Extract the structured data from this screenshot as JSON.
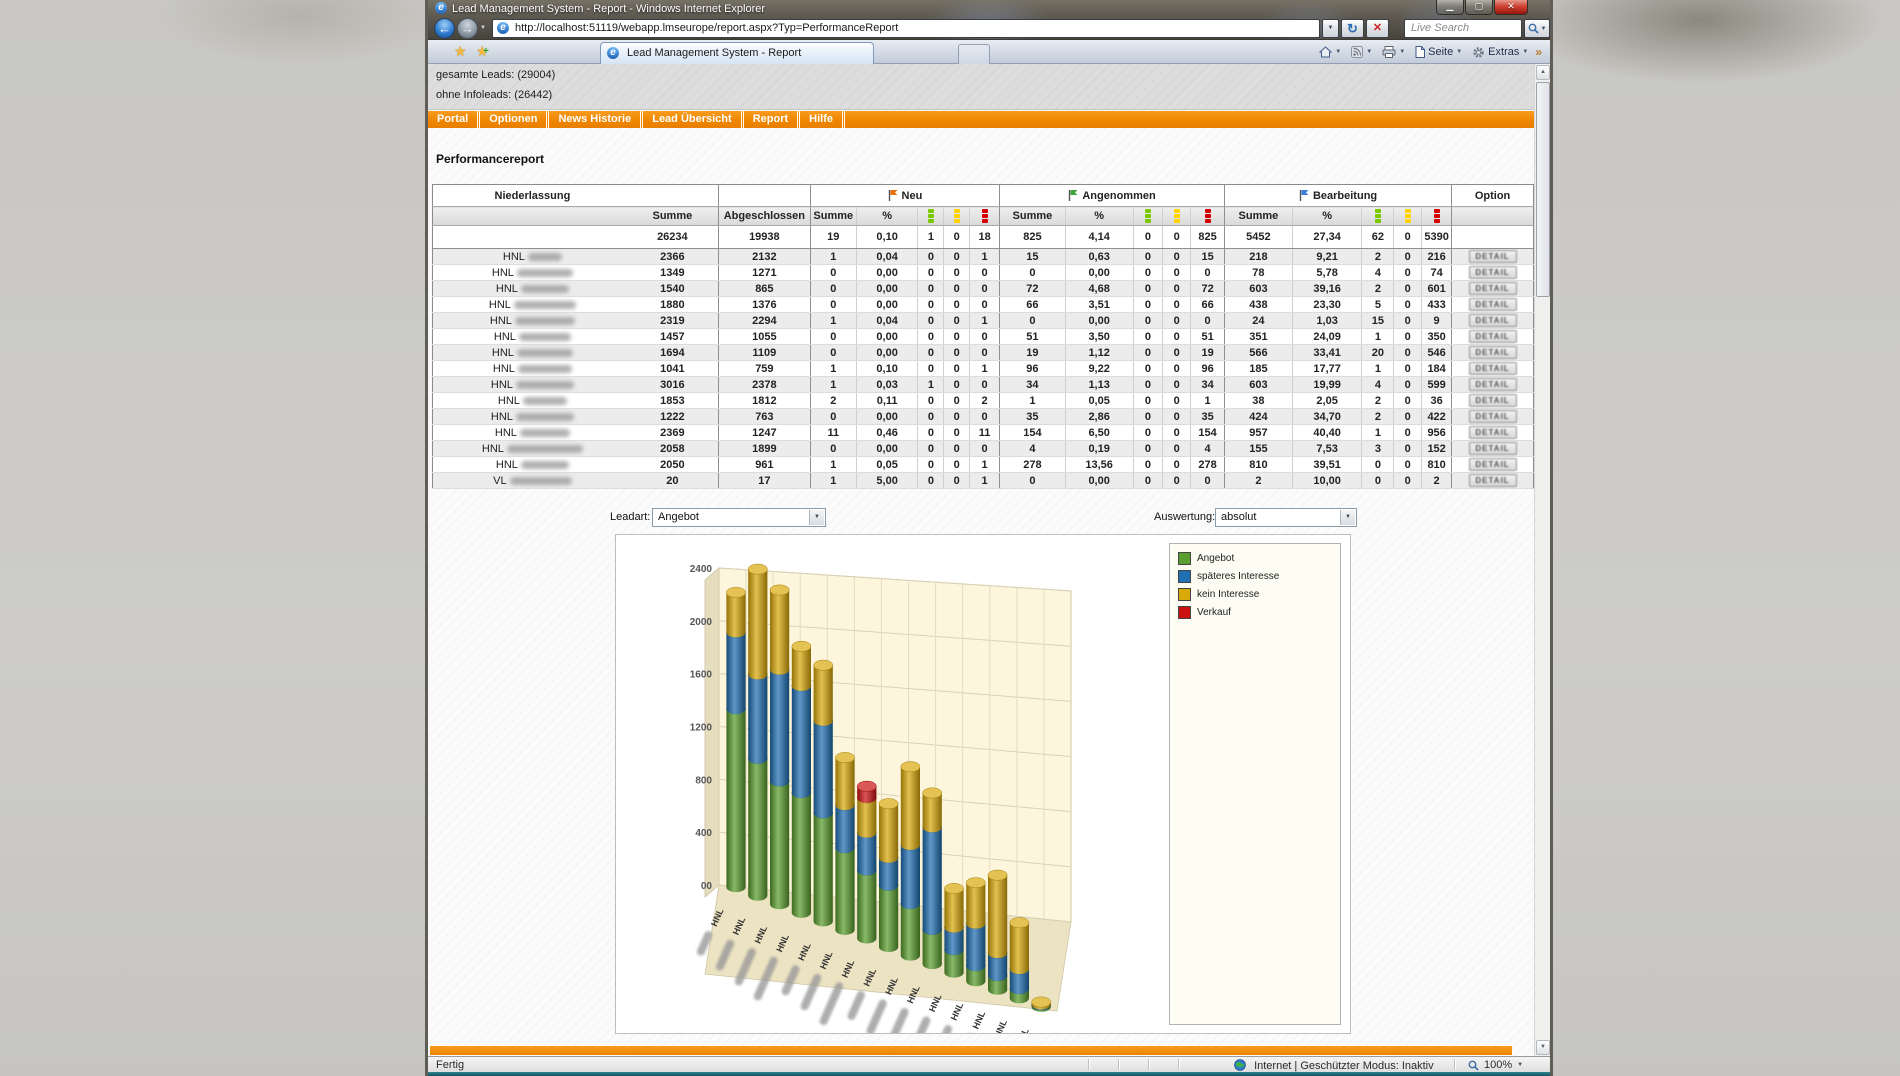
{
  "window": {
    "title": "Lead Management System - Report - Windows Internet Explorer",
    "url": "http://localhost:51119/webapp.lmseurope/report.aspx?Typ=PerformanceReport",
    "search_placeholder": "Live Search",
    "tab_title": "Lead Management System - Report",
    "command_bar": {
      "seite": "Seite",
      "extras": "Extras"
    },
    "status": {
      "left": "Fertig",
      "zone": "Internet | Geschützter Modus: Inaktiv",
      "zoom": "100%"
    }
  },
  "page": {
    "counters": {
      "line1": "gesamte Leads: (29004)",
      "line2": "ohne Infoleads: (26442)"
    },
    "menu": [
      "Portal",
      "Optionen",
      "News Historie",
      "Lead Übersicht",
      "Report",
      "Hilfe"
    ],
    "heading": "Performancereport",
    "table": {
      "col_niederlassung": "Niederlassung",
      "col_summe": "Summe",
      "col_abgeschlossen": "Abgeschlossen",
      "col_pct": "%",
      "col_option": "Option",
      "detail_label": "DETAIL",
      "groups": [
        {
          "label": "Neu",
          "flag_color": "#e8720c"
        },
        {
          "label": "Angenommen",
          "flag_color": "#3fa33f"
        },
        {
          "label": "Bearbeitung",
          "flag_color": "#3d7edb"
        }
      ],
      "traffic_colors": [
        "#7ac800",
        "#ffd400",
        "#d40000"
      ],
      "totals": {
        "summe": "26234",
        "abgeschlossen": "19938",
        "neu": [
          "19",
          "0,10",
          "1",
          "0",
          "18"
        ],
        "angenommen": [
          "825",
          "4,14",
          "0",
          "0",
          "825"
        ],
        "bearbeitung": [
          "5452",
          "27,34",
          "62",
          "0",
          "5390"
        ]
      },
      "rows": [
        {
          "prefix": "HNL",
          "redact_w": 34,
          "summe": "2366",
          "abgeschlossen": "2132",
          "neu": [
            "1",
            "0,04",
            "0",
            "0",
            "1"
          ],
          "angenommen": [
            "15",
            "0,63",
            "0",
            "0",
            "15"
          ],
          "bearbeitung": [
            "218",
            "9,21",
            "2",
            "0",
            "216"
          ]
        },
        {
          "prefix": "HNL",
          "redact_w": 56,
          "summe": "1349",
          "abgeschlossen": "1271",
          "neu": [
            "0",
            "0,00",
            "0",
            "0",
            "0"
          ],
          "angenommen": [
            "0",
            "0,00",
            "0",
            "0",
            "0"
          ],
          "bearbeitung": [
            "78",
            "5,78",
            "4",
            "0",
            "74"
          ]
        },
        {
          "prefix": "HNL",
          "redact_w": 48,
          "summe": "1540",
          "abgeschlossen": "865",
          "neu": [
            "0",
            "0,00",
            "0",
            "0",
            "0"
          ],
          "angenommen": [
            "72",
            "4,68",
            "0",
            "0",
            "72"
          ],
          "bearbeitung": [
            "603",
            "39,16",
            "2",
            "0",
            "601"
          ]
        },
        {
          "prefix": "HNL",
          "redact_w": 62,
          "summe": "1880",
          "abgeschlossen": "1376",
          "neu": [
            "0",
            "0,00",
            "0",
            "0",
            "0"
          ],
          "angenommen": [
            "66",
            "3,51",
            "0",
            "0",
            "66"
          ],
          "bearbeitung": [
            "438",
            "23,30",
            "5",
            "0",
            "433"
          ]
        },
        {
          "prefix": "HNL",
          "redact_w": 60,
          "summe": "2319",
          "abgeschlossen": "2294",
          "neu": [
            "1",
            "0,04",
            "0",
            "0",
            "1"
          ],
          "angenommen": [
            "0",
            "0,00",
            "0",
            "0",
            "0"
          ],
          "bearbeitung": [
            "24",
            "1,03",
            "15",
            "0",
            "9"
          ]
        },
        {
          "prefix": "HNL",
          "redact_w": 52,
          "summe": "1457",
          "abgeschlossen": "1055",
          "neu": [
            "0",
            "0,00",
            "0",
            "0",
            "0"
          ],
          "angenommen": [
            "51",
            "3,50",
            "0",
            "0",
            "51"
          ],
          "bearbeitung": [
            "351",
            "24,09",
            "1",
            "0",
            "350"
          ]
        },
        {
          "prefix": "HNL",
          "redact_w": 56,
          "summe": "1694",
          "abgeschlossen": "1109",
          "neu": [
            "0",
            "0,00",
            "0",
            "0",
            "0"
          ],
          "angenommen": [
            "19",
            "1,12",
            "0",
            "0",
            "19"
          ],
          "bearbeitung": [
            "566",
            "33,41",
            "20",
            "0",
            "546"
          ]
        },
        {
          "prefix": "HNL",
          "redact_w": 54,
          "summe": "1041",
          "abgeschlossen": "759",
          "neu": [
            "1",
            "0,10",
            "0",
            "0",
            "1"
          ],
          "angenommen": [
            "96",
            "9,22",
            "0",
            "0",
            "96"
          ],
          "bearbeitung": [
            "185",
            "17,77",
            "1",
            "0",
            "184"
          ]
        },
        {
          "prefix": "HNL",
          "redact_w": 58,
          "summe": "3016",
          "abgeschlossen": "2378",
          "neu": [
            "1",
            "0,03",
            "1",
            "0",
            "0"
          ],
          "angenommen": [
            "34",
            "1,13",
            "0",
            "0",
            "34"
          ],
          "bearbeitung": [
            "603",
            "19,99",
            "4",
            "0",
            "599"
          ]
        },
        {
          "prefix": "HNL",
          "redact_w": 44,
          "summe": "1853",
          "abgeschlossen": "1812",
          "neu": [
            "2",
            "0,11",
            "0",
            "0",
            "2"
          ],
          "angenommen": [
            "1",
            "0,05",
            "0",
            "0",
            "1"
          ],
          "bearbeitung": [
            "38",
            "2,05",
            "2",
            "0",
            "36"
          ]
        },
        {
          "prefix": "HNL",
          "redact_w": 58,
          "summe": "1222",
          "abgeschlossen": "763",
          "neu": [
            "0",
            "0,00",
            "0",
            "0",
            "0"
          ],
          "angenommen": [
            "35",
            "2,86",
            "0",
            "0",
            "35"
          ],
          "bearbeitung": [
            "424",
            "34,70",
            "2",
            "0",
            "422"
          ]
        },
        {
          "prefix": "HNL",
          "redact_w": 50,
          "summe": "2369",
          "abgeschlossen": "1247",
          "neu": [
            "11",
            "0,46",
            "0",
            "0",
            "11"
          ],
          "angenommen": [
            "154",
            "6,50",
            "0",
            "0",
            "154"
          ],
          "bearbeitung": [
            "957",
            "40,40",
            "1",
            "0",
            "956"
          ]
        },
        {
          "prefix": "HNL",
          "redact_w": 76,
          "summe": "2058",
          "abgeschlossen": "1899",
          "neu": [
            "0",
            "0,00",
            "0",
            "0",
            "0"
          ],
          "angenommen": [
            "4",
            "0,19",
            "0",
            "0",
            "4"
          ],
          "bearbeitung": [
            "155",
            "7,53",
            "3",
            "0",
            "152"
          ]
        },
        {
          "prefix": "HNL",
          "redact_w": 48,
          "summe": "2050",
          "abgeschlossen": "961",
          "neu": [
            "1",
            "0,05",
            "0",
            "0",
            "1"
          ],
          "angenommen": [
            "278",
            "13,56",
            "0",
            "0",
            "278"
          ],
          "bearbeitung": [
            "810",
            "39,51",
            "0",
            "0",
            "810"
          ]
        },
        {
          "prefix": "VL",
          "redact_w": 62,
          "summe": "20",
          "abgeschlossen": "17",
          "neu": [
            "1",
            "5,00",
            "0",
            "0",
            "1"
          ],
          "angenommen": [
            "0",
            "0,00",
            "0",
            "0",
            "0"
          ],
          "bearbeitung": [
            "2",
            "10,00",
            "0",
            "0",
            "2"
          ]
        }
      ]
    },
    "chart_controls": {
      "leadart_label": "Leadart:",
      "leadart_value": "Angebot",
      "auswertung_label": "Auswertung:",
      "auswertung_value": "absolut"
    }
  },
  "chart_data": {
    "type": "bar",
    "subtype": "3d-stacked-cylinders",
    "title": "",
    "categories": [
      "HNL",
      "HNL",
      "HNL",
      "HNL",
      "HNL",
      "HNL",
      "HNL",
      "HNL",
      "HNL",
      "HNL",
      "HNL",
      "HNL",
      "HNL",
      "HNL",
      "VL"
    ],
    "categories_redacted": true,
    "series": [
      {
        "name": "Angebot",
        "color": "#5a9e2f",
        "values": [
          1300,
          990,
          880,
          850,
          760,
          570,
          470,
          420,
          350,
          230,
          150,
          100,
          90,
          60,
          10
        ]
      },
      {
        "name": "späteres Interesse",
        "color": "#1f6fb2",
        "values": [
          560,
          610,
          800,
          760,
          650,
          300,
          260,
          190,
          400,
          690,
          150,
          280,
          150,
          130,
          5
        ]
      },
      {
        "name": "kein Interesse",
        "color": "#d9a90a",
        "values": [
          290,
          760,
          570,
          280,
          390,
          330,
          240,
          370,
          530,
          230,
          260,
          270,
          510,
          300,
          15
        ]
      },
      {
        "name": "Verkauf",
        "color": "#cc1111",
        "values": [
          0,
          0,
          0,
          0,
          0,
          0,
          80,
          0,
          0,
          0,
          0,
          0,
          0,
          0,
          0
        ]
      }
    ],
    "values_estimated": true,
    "ylim": [
      0,
      2400
    ],
    "y_ticks": [
      0,
      400,
      800,
      1200,
      1600,
      2000,
      2400
    ],
    "y_tick_labels": [
      "00",
      "400",
      "800",
      "1200",
      "1600",
      "2000",
      "2400"
    ],
    "grid": true,
    "legend_position": "right"
  }
}
